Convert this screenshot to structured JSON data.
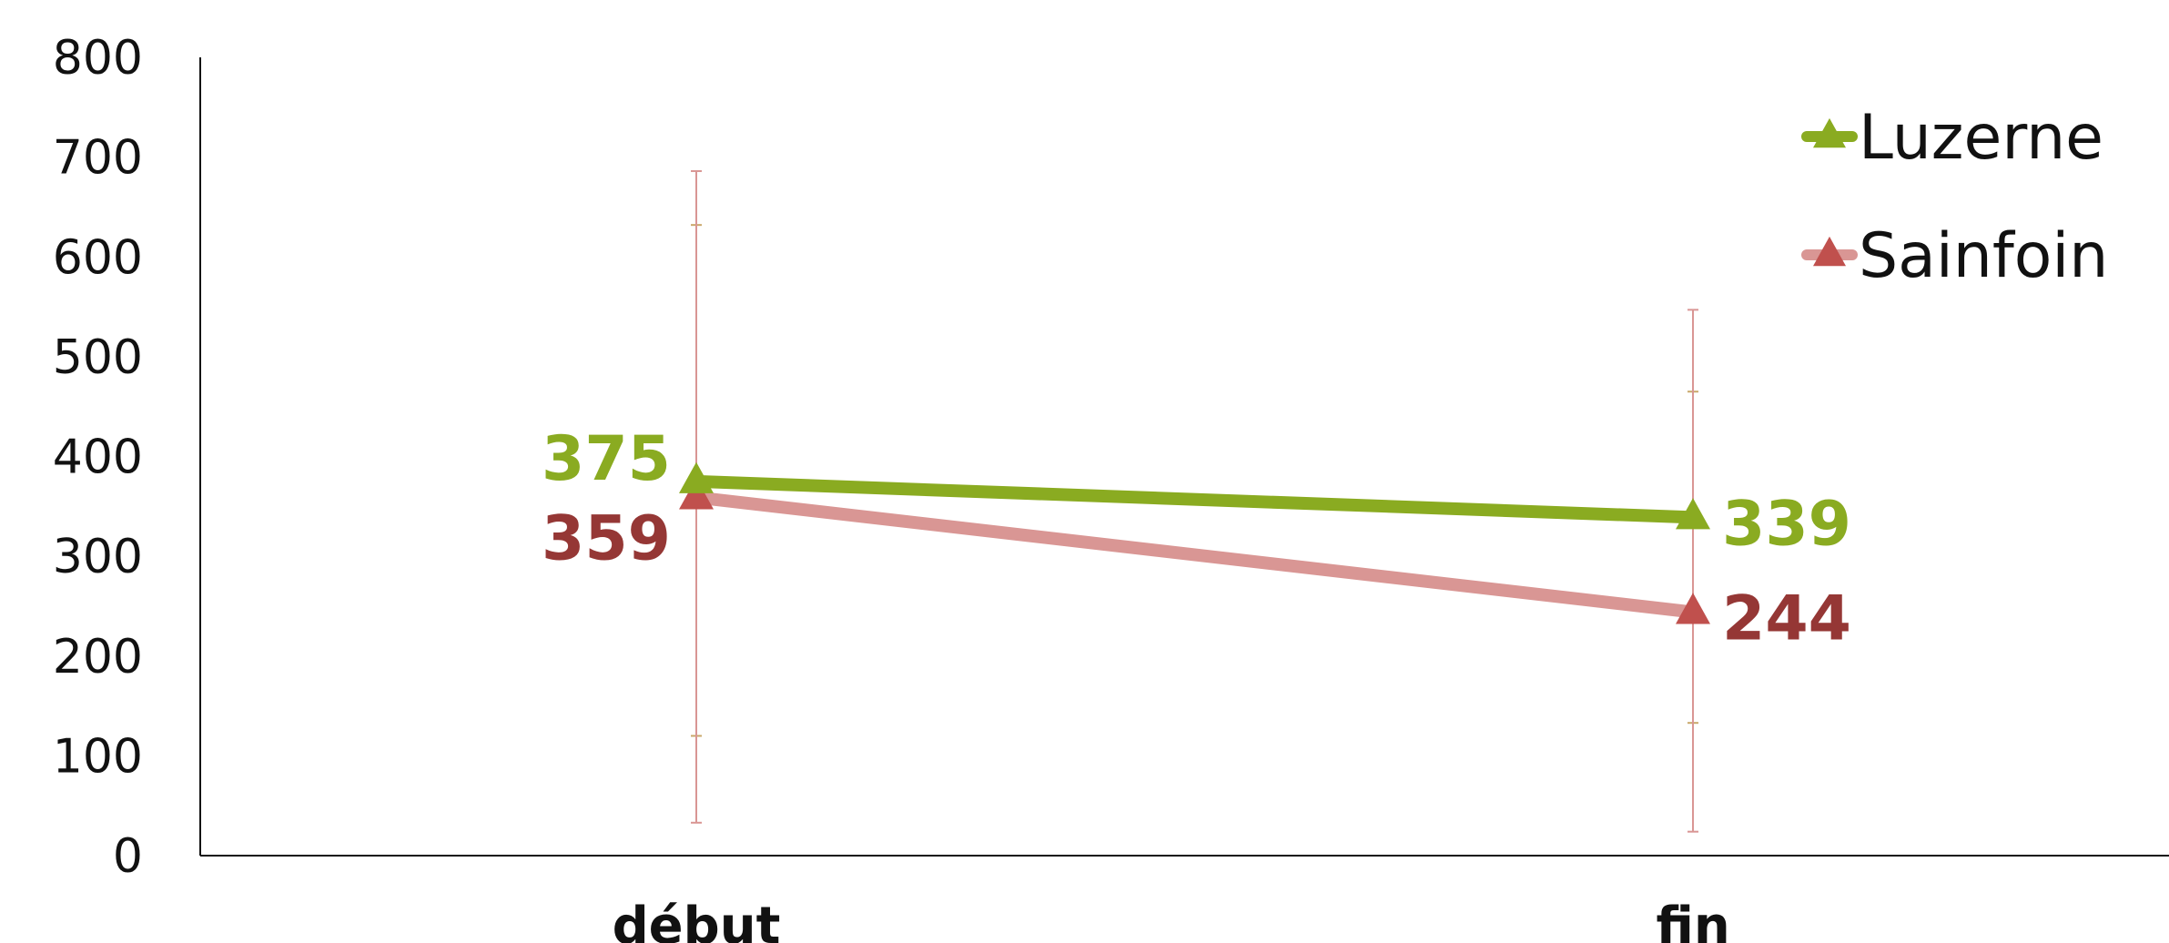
{
  "chart_data": {
    "type": "line",
    "categories": [
      "début",
      "fin"
    ],
    "ylim": [
      0,
      800
    ],
    "yticks": [
      0,
      100,
      200,
      300,
      400,
      500,
      600,
      700,
      800
    ],
    "grid": false,
    "legend_position": "top-right",
    "error_bars": true,
    "series": [
      {
        "name": "Luzerne",
        "values": [
          375,
          339
        ],
        "error_low": [
          120,
          133
        ],
        "error_high": [
          632,
          465
        ],
        "color": "#8aab21",
        "label_color": "#8aab21"
      },
      {
        "name": "Sainfoin",
        "values": [
          359,
          244
        ],
        "error_low": [
          33,
          24
        ],
        "error_high": [
          686,
          547
        ],
        "color": "#d99694",
        "label_color": "#953735"
      }
    ],
    "error_colors": [
      "#c9a86a",
      "#d99694"
    ],
    "marker_color": "#c0504d"
  }
}
